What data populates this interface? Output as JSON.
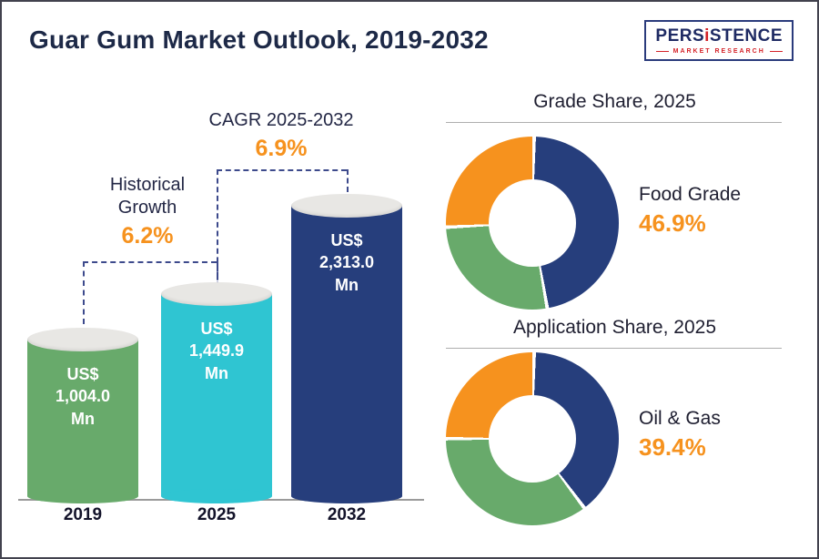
{
  "header": {
    "title": "Guar Gum Market Outlook, 2019-2032",
    "logo": {
      "name_parts": [
        "PERS",
        "i",
        "STENCE"
      ],
      "tagline": "MARKET RESEARCH"
    }
  },
  "colors": {
    "navy": "#263e7c",
    "green": "#68aa6b",
    "cyan": "#2fc5d2",
    "orange": "#f6921e",
    "dashed_line": "#3d4a8c"
  },
  "chart_data": [
    {
      "type": "bar",
      "title": "Guar Gum Market Outlook, 2019-2032",
      "categories": [
        "2019",
        "2025",
        "2032"
      ],
      "values": [
        1004.0,
        1449.9,
        2313.0
      ],
      "value_labels": [
        "US$\n1,004.0\nMn",
        "US$\n1,449.9\nMn",
        "US$\n2,313.0\nMn"
      ],
      "unit": "US$ Mn",
      "bar_colors": [
        "#68aa6b",
        "#2fc5d2",
        "#263e7c"
      ],
      "xlabel": "",
      "ylabel": "",
      "annotations": [
        {
          "label": "Historical Growth",
          "value": "6.2%",
          "between": [
            "2019",
            "2025"
          ]
        },
        {
          "label": "CAGR 2025-2032",
          "value": "6.9%",
          "between": [
            "2025",
            "2032"
          ]
        }
      ]
    },
    {
      "type": "pie",
      "title": "Grade Share, 2025",
      "highlight": {
        "label": "Food Grade",
        "value": "46.9%"
      },
      "slices": [
        {
          "name": "Food Grade",
          "value": 46.9,
          "color": "#263e7c"
        },
        {
          "name": "other (green)",
          "value": 27.0,
          "color": "#68aa6b"
        },
        {
          "name": "other (orange)",
          "value": 26.1,
          "color": "#f6921e"
        }
      ],
      "legend_position": "right"
    },
    {
      "type": "pie",
      "title": "Application Share, 2025",
      "highlight": {
        "label": "Oil & Gas",
        "value": "39.4%"
      },
      "slices": [
        {
          "name": "Oil & Gas",
          "value": 39.4,
          "color": "#263e7c"
        },
        {
          "name": "other (green)",
          "value": 35.3,
          "color": "#68aa6b"
        },
        {
          "name": "other (orange)",
          "value": 25.3,
          "color": "#f6921e"
        }
      ],
      "legend_position": "right"
    }
  ]
}
